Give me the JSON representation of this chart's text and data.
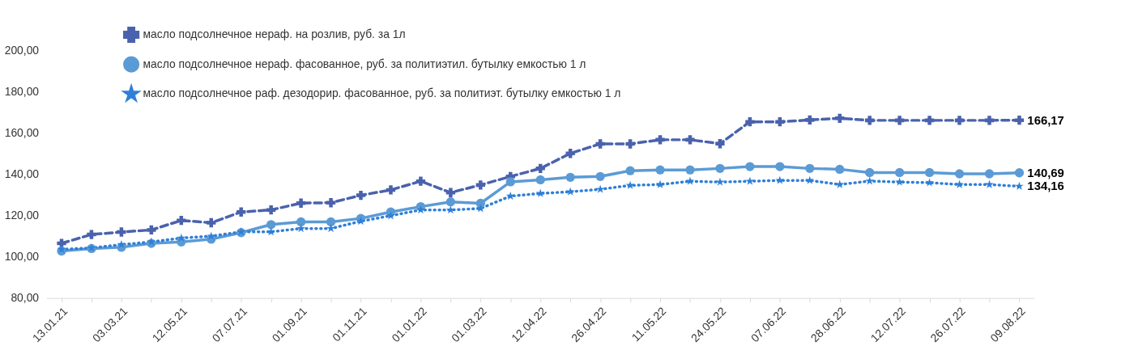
{
  "chart_data": {
    "type": "line",
    "categories": [
      "13.01.21",
      null,
      "03.03.21",
      null,
      "12.05.21",
      null,
      "07.07.21",
      null,
      "01.09.21",
      null,
      "01.11.21",
      null,
      "01.01.22",
      null,
      "01.03.22",
      null,
      "12.04.22",
      null,
      "26.04.22",
      null,
      "11.05.22",
      null,
      "24.05.22",
      null,
      "07.06.22",
      null,
      "28.06.22",
      null,
      "12.07.22",
      null,
      "26.07.22",
      null,
      "09.08.22"
    ],
    "series": [
      {
        "name": "масло подсолнечное нераф. на розлив, руб. за 1л",
        "color": "#4a62ad",
        "marker": "cross",
        "line_style": "dashed",
        "values": [
          106.5,
          110.8,
          112.0,
          113.0,
          117.6,
          116.5,
          121.7,
          122.7,
          126.0,
          126.2,
          129.8,
          132.4,
          136.6,
          131.1,
          134.8,
          138.9,
          142.8,
          150.1,
          154.7,
          154.7,
          156.7,
          156.7,
          154.8,
          165.4,
          165.4,
          166.3,
          167.1,
          166.1,
          166.1,
          166.1,
          166.1,
          166.1,
          166.17
        ],
        "value_labels": [
          null,
          null,
          null,
          null,
          null,
          null,
          null,
          null,
          null,
          null,
          null,
          null,
          null,
          null,
          null,
          null,
          null,
          null,
          null,
          null,
          null,
          null,
          null,
          null,
          null,
          null,
          null,
          null,
          null,
          null,
          null,
          null,
          "166,17"
        ]
      },
      {
        "name": "масло подсолнечное нераф. фасованное, руб. за политиэтил. бутылку емкостью 1 л",
        "color": "#5b9bd5",
        "marker": "circle",
        "line_style": "solid",
        "values": [
          102.8,
          104.0,
          104.6,
          106.5,
          107.2,
          108.5,
          111.7,
          115.6,
          116.9,
          116.9,
          118.6,
          121.7,
          124.3,
          126.6,
          125.9,
          136.3,
          137.3,
          138.5,
          138.9,
          141.7,
          142.1,
          142.1,
          142.8,
          143.7,
          143.7,
          142.8,
          142.4,
          140.8,
          140.8,
          140.8,
          140.2,
          140.2,
          140.69
        ],
        "value_labels": [
          null,
          null,
          null,
          null,
          null,
          null,
          null,
          null,
          null,
          null,
          null,
          null,
          null,
          null,
          null,
          null,
          null,
          null,
          null,
          null,
          null,
          null,
          null,
          null,
          null,
          null,
          null,
          null,
          null,
          null,
          null,
          null,
          "140,69"
        ]
      },
      {
        "name": "масло подсолнечное раф. дезодорир. фасованное, руб. за политиэт. бутылку емкостью 1 л",
        "color": "#2e7fd8",
        "marker": "star",
        "line_style": "dotted",
        "values": [
          103.6,
          104.3,
          105.9,
          107.2,
          109.1,
          110.0,
          112.1,
          112.1,
          113.7,
          113.7,
          117.2,
          119.9,
          122.7,
          122.7,
          123.4,
          129.4,
          130.7,
          131.5,
          132.7,
          134.6,
          135.0,
          136.6,
          136.2,
          136.6,
          137.0,
          137.0,
          135.0,
          136.7,
          136.2,
          135.9,
          135.0,
          135.0,
          134.16
        ],
        "value_labels": [
          null,
          null,
          null,
          null,
          null,
          null,
          null,
          null,
          null,
          null,
          null,
          null,
          null,
          null,
          null,
          null,
          null,
          null,
          null,
          null,
          null,
          null,
          null,
          null,
          null,
          null,
          null,
          null,
          null,
          null,
          null,
          null,
          "134,16"
        ]
      }
    ],
    "ylim": [
      80,
      200
    ],
    "yticks": [
      {
        "value": 80,
        "label": "80,00"
      },
      {
        "value": 100,
        "label": "100,00"
      },
      {
        "value": 120,
        "label": "120,00"
      },
      {
        "value": 140,
        "label": "140,00"
      },
      {
        "value": 160,
        "label": "160,00"
      },
      {
        "value": 180,
        "label": "180,00"
      },
      {
        "value": 200,
        "label": "200,00"
      }
    ],
    "grid": false,
    "legend": "top left"
  }
}
